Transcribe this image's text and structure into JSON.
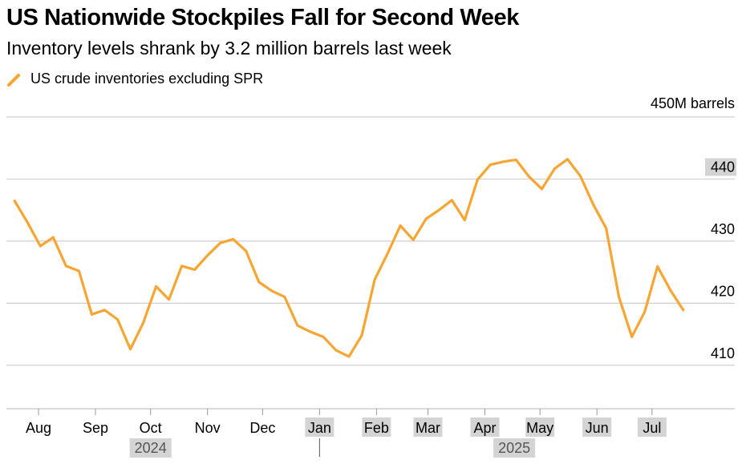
{
  "header": {
    "title": "US Nationwide Stockpiles Fall for Second Week",
    "subtitle": "Inventory levels shrank by 3.2 million barrels last week"
  },
  "legend": {
    "label": "US crude inventories excluding SPR",
    "color": "#f7a533"
  },
  "chart_data": {
    "type": "line",
    "title": "US Nationwide Stockpiles Fall for Second Week",
    "subtitle": "Inventory levels shrank by 3.2 million barrels last week",
    "ylabel": "450M barrels",
    "ylim": [
      403,
      450
    ],
    "y_ticks": [
      {
        "value": 450,
        "label": "450M barrels",
        "highlight": false
      },
      {
        "value": 440,
        "label": "440",
        "highlight": true
      },
      {
        "value": 430,
        "label": "430",
        "highlight": false
      },
      {
        "value": 420,
        "label": "420",
        "highlight": false
      },
      {
        "value": 410,
        "label": "410",
        "highlight": false
      }
    ],
    "x_ticks": [
      {
        "date": "2024-08-01",
        "label": "Aug",
        "highlight": false
      },
      {
        "date": "2024-09-01",
        "label": "Sep",
        "highlight": false
      },
      {
        "date": "2024-10-01",
        "label": "Oct",
        "highlight": false
      },
      {
        "date": "2024-11-01",
        "label": "Nov",
        "highlight": false
      },
      {
        "date": "2024-12-01",
        "label": "Dec",
        "highlight": false
      },
      {
        "date": "2025-01-01",
        "label": "Jan",
        "highlight": true
      },
      {
        "date": "2025-02-01",
        "label": "Feb",
        "highlight": true
      },
      {
        "date": "2025-03-01",
        "label": "Mar",
        "highlight": true
      },
      {
        "date": "2025-04-01",
        "label": "Apr",
        "highlight": true
      },
      {
        "date": "2025-05-01",
        "label": "May",
        "highlight": true
      },
      {
        "date": "2025-06-01",
        "label": "Jun",
        "highlight": true
      },
      {
        "date": "2025-07-01",
        "label": "Jul",
        "highlight": true
      }
    ],
    "years": [
      {
        "label": "2024",
        "date": "2024-10-01"
      },
      {
        "label": "2025",
        "date": "2025-04-17"
      }
    ],
    "year_divider_date": "2025-01-01",
    "grid": true,
    "legend_position": "top-left",
    "series": [
      {
        "name": "US crude inventories excluding SPR",
        "color": "#f7a533",
        "x": [
          "2024-07-19",
          "2024-07-26",
          "2024-08-02",
          "2024-08-09",
          "2024-08-16",
          "2024-08-23",
          "2024-08-30",
          "2024-09-06",
          "2024-09-13",
          "2024-09-20",
          "2024-09-27",
          "2024-10-04",
          "2024-10-11",
          "2024-10-18",
          "2024-10-25",
          "2024-11-01",
          "2024-11-08",
          "2024-11-15",
          "2024-11-22",
          "2024-11-29",
          "2024-12-06",
          "2024-12-13",
          "2024-12-20",
          "2024-12-27",
          "2025-01-03",
          "2025-01-10",
          "2025-01-17",
          "2025-01-24",
          "2025-01-31",
          "2025-02-07",
          "2025-02-14",
          "2025-02-21",
          "2025-02-28",
          "2025-03-07",
          "2025-03-14",
          "2025-03-21",
          "2025-03-28",
          "2025-04-04",
          "2025-04-11",
          "2025-04-18",
          "2025-04-25",
          "2025-05-02",
          "2025-05-09",
          "2025-05-16",
          "2025-05-23",
          "2025-05-30",
          "2025-06-06",
          "2025-06-13",
          "2025-06-20",
          "2025-06-27",
          "2025-07-04",
          "2025-07-11",
          "2025-07-18"
        ],
        "y": [
          436.5,
          433.0,
          429.2,
          430.6,
          426.0,
          425.2,
          418.2,
          418.9,
          417.4,
          412.6,
          416.8,
          422.7,
          420.6,
          426.0,
          425.4,
          427.7,
          429.7,
          430.3,
          428.4,
          423.4,
          422.0,
          421.0,
          416.4,
          415.4,
          414.6,
          412.4,
          411.4,
          414.8,
          423.8,
          428.0,
          432.5,
          430.2,
          433.6,
          435.0,
          436.6,
          433.4,
          439.9,
          442.3,
          442.8,
          443.1,
          440.4,
          438.4,
          441.7,
          443.2,
          440.5,
          435.9,
          432.1,
          421.0,
          414.6,
          418.6,
          425.9,
          422.1,
          418.9
        ]
      }
    ]
  }
}
